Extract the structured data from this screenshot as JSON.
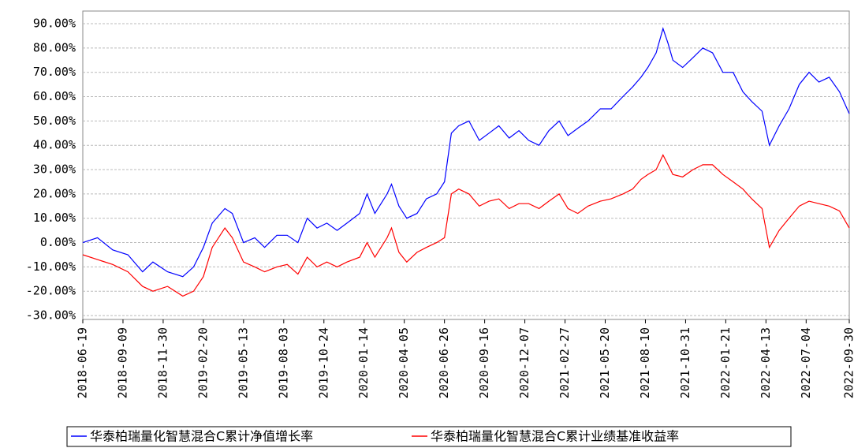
{
  "chart_data": {
    "type": "line",
    "x": [
      "2018-06-19",
      "2018-07-19",
      "2018-08-19",
      "2018-09-19",
      "2018-10-19",
      "2018-11-09",
      "2018-12-09",
      "2019-01-09",
      "2019-01-31",
      "2019-02-20",
      "2019-03-10",
      "2019-04-05",
      "2019-04-20",
      "2019-05-13",
      "2019-06-05",
      "2019-06-25",
      "2019-07-20",
      "2019-08-10",
      "2019-09-01",
      "2019-09-20",
      "2019-10-10",
      "2019-10-30",
      "2019-11-20",
      "2019-12-10",
      "2020-01-05",
      "2020-01-20",
      "2020-02-05",
      "2020-03-01",
      "2020-03-10",
      "2020-03-25",
      "2020-04-10",
      "2020-05-01",
      "2020-05-20",
      "2020-06-10",
      "2020-06-26",
      "2020-07-10",
      "2020-07-25",
      "2020-08-15",
      "2020-09-05",
      "2020-09-25",
      "2020-10-15",
      "2020-11-05",
      "2020-11-25",
      "2020-12-15",
      "2021-01-05",
      "2021-01-25",
      "2021-02-15",
      "2021-03-05",
      "2021-03-25",
      "2021-04-15",
      "2021-05-10",
      "2021-06-01",
      "2021-06-25",
      "2021-07-15",
      "2021-08-01",
      "2021-08-15",
      "2021-09-01",
      "2021-09-15",
      "2021-09-25",
      "2021-10-05",
      "2021-10-25",
      "2021-11-15",
      "2021-12-05",
      "2021-12-25",
      "2022-01-15",
      "2022-02-05",
      "2022-02-25",
      "2022-03-15",
      "2022-04-05",
      "2022-04-20",
      "2022-05-10",
      "2022-05-30",
      "2022-06-20",
      "2022-07-10",
      "2022-07-30",
      "2022-08-20",
      "2022-09-10",
      "2022-09-30"
    ],
    "series": [
      {
        "name": "华泰柏瑞量化智慧混合C累计净值增长率",
        "color": "#0000ff",
        "values": [
          0,
          2,
          -3,
          -5,
          -12,
          -8,
          -12,
          -14,
          -10,
          -2,
          8,
          14,
          12,
          0,
          2,
          -2,
          3,
          3,
          0,
          10,
          6,
          8,
          5,
          8,
          12,
          20,
          12,
          20,
          24,
          15,
          10,
          12,
          18,
          20,
          25,
          45,
          48,
          50,
          42,
          45,
          48,
          43,
          46,
          42,
          40,
          46,
          50,
          44,
          47,
          50,
          55,
          55,
          60,
          64,
          68,
          72,
          78,
          88,
          82,
          75,
          72,
          76,
          80,
          78,
          70,
          70,
          62,
          58,
          54,
          40,
          48,
          55,
          65,
          70,
          66,
          68,
          62,
          53
        ]
      },
      {
        "name": "华泰柏瑞量化智慧混合C累计业绩基准收益率",
        "color": "#ff0000",
        "values": [
          -5,
          -7,
          -9,
          -12,
          -18,
          -20,
          -18,
          -22,
          -20,
          -14,
          -2,
          6,
          2,
          -8,
          -10,
          -12,
          -10,
          -9,
          -13,
          -6,
          -10,
          -8,
          -10,
          -8,
          -6,
          0,
          -6,
          2,
          6,
          -4,
          -8,
          -4,
          -2,
          0,
          2,
          20,
          22,
          20,
          15,
          17,
          18,
          14,
          16,
          16,
          14,
          17,
          20,
          14,
          12,
          15,
          17,
          18,
          20,
          22,
          26,
          28,
          30,
          36,
          32,
          28,
          27,
          30,
          32,
          32,
          28,
          25,
          22,
          18,
          14,
          -2,
          5,
          10,
          15,
          17,
          16,
          15,
          13,
          6
        ]
      }
    ],
    "xlim": [
      "2018-06-19",
      "2022-09-30"
    ],
    "xticks": [
      "2018-06-19",
      "2018-09-09",
      "2018-11-30",
      "2019-02-20",
      "2019-05-13",
      "2019-08-03",
      "2019-10-24",
      "2020-01-14",
      "2020-04-05",
      "2020-06-26",
      "2020-09-16",
      "2020-12-07",
      "2021-02-27",
      "2021-05-20",
      "2021-08-10",
      "2021-10-31",
      "2022-01-21",
      "2022-04-13",
      "2022-07-04",
      "2022-09-30"
    ],
    "ylim": [
      -31.6,
      95.2
    ],
    "yticks": [
      {
        "value": -30,
        "label": "-30.00%"
      },
      {
        "value": -20,
        "label": "-20.00%"
      },
      {
        "value": -10,
        "label": "-10.00%"
      },
      {
        "value": 0,
        "label": "0.00%"
      },
      {
        "value": 10,
        "label": "10.00%"
      },
      {
        "value": 20,
        "label": "20.00%"
      },
      {
        "value": 30,
        "label": "30.00%"
      },
      {
        "value": 40,
        "label": "40.00%"
      },
      {
        "value": 50,
        "label": "50.00%"
      },
      {
        "value": 60,
        "label": "60.00%"
      },
      {
        "value": 70,
        "label": "70.00%"
      },
      {
        "value": 80,
        "label": "80.00%"
      },
      {
        "value": 90,
        "label": "90.00%"
      }
    ],
    "grid": true
  }
}
